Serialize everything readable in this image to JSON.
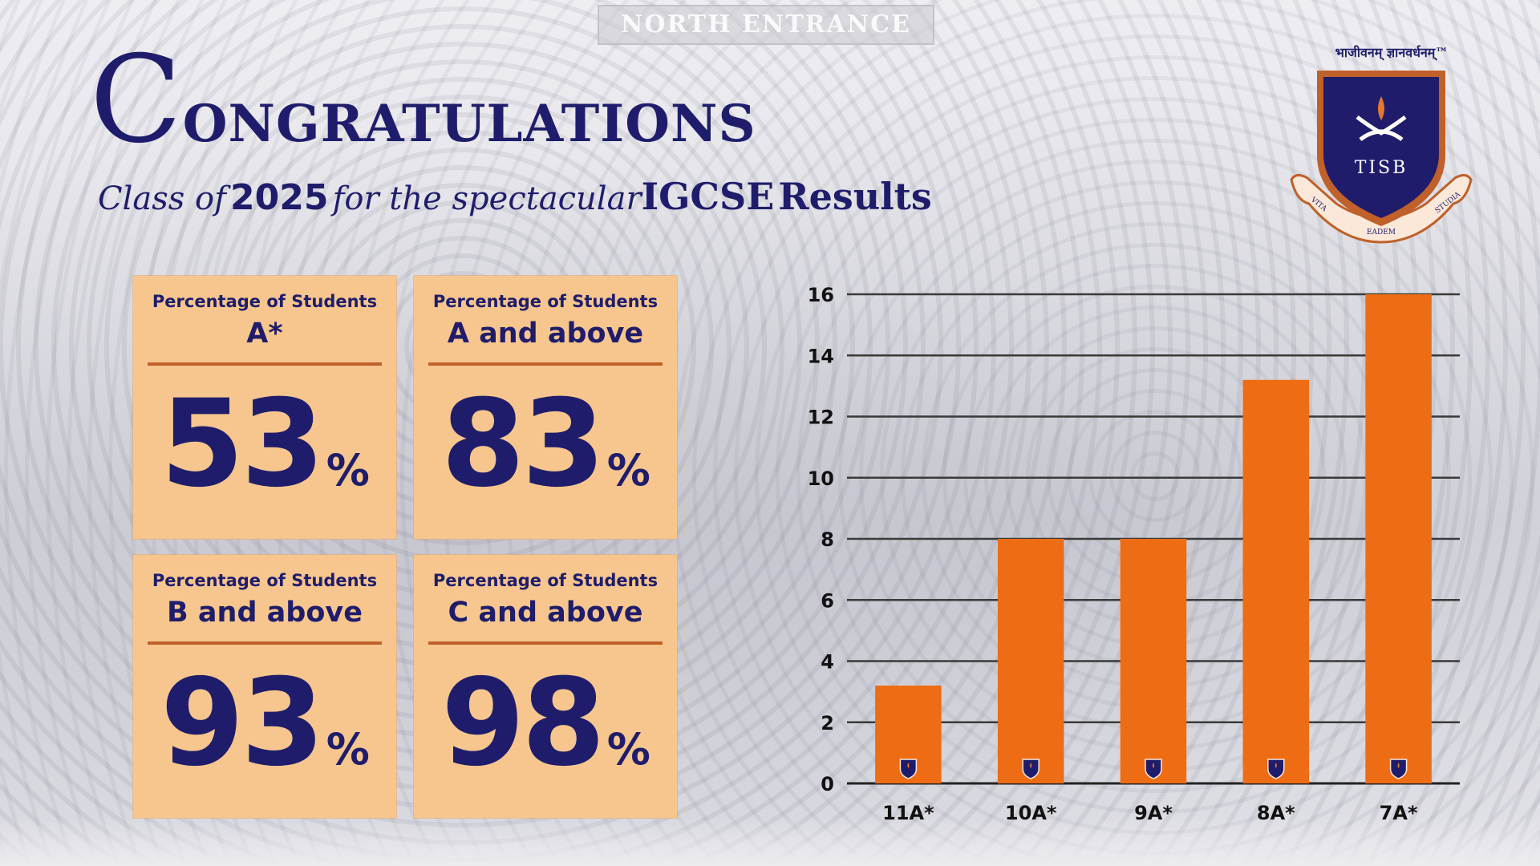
{
  "header": {
    "sign": "NORTH ENTRANCE",
    "title_first": "C",
    "title_rest": "ongratulations",
    "subtitle_class_of": "Class of",
    "subtitle_year": "2025",
    "subtitle_for": "for the spectacular",
    "subtitle_igcse": "IGCSE",
    "subtitle_results": "Results"
  },
  "logo": {
    "motto": "भाजीवनम् ज्ञानवर्धनम्™",
    "initials": "TISB",
    "ribbon_left": "VITA",
    "ribbon_center": "EADEM",
    "ribbon_right": "STUDIA",
    "colors": {
      "navy": "#1f1d6b",
      "copper": "#c0602a",
      "flame": "#e9772a"
    }
  },
  "stats": [
    {
      "label_top": "Percentage of Students",
      "label_main": "A*",
      "value": "53",
      "unit": "%"
    },
    {
      "label_top": "Percentage of Students",
      "label_main": "A and above",
      "value": "83",
      "unit": "%"
    },
    {
      "label_top": "Percentage of Students",
      "label_main": "B and above",
      "value": "93",
      "unit": "%"
    },
    {
      "label_top": "Percentage of Students",
      "label_main": "C and above",
      "value": "98",
      "unit": "%"
    }
  ],
  "colors": {
    "card": "#f6c68e",
    "navy": "#1f1d6b",
    "bar": "#ee6c14",
    "rule": "#c0602a"
  },
  "chart_data": {
    "type": "bar",
    "categories": [
      "11A*",
      "10A*",
      "9A*",
      "8A*",
      "7A*"
    ],
    "values": [
      3.2,
      8,
      8,
      13.2,
      16
    ],
    "title": "",
    "xlabel": "",
    "ylabel": "",
    "ylim": [
      0,
      16
    ],
    "yticks": [
      0,
      2,
      4,
      6,
      8,
      10,
      12,
      14,
      16
    ],
    "grid": true,
    "legend": "none",
    "bar_color": "#ee6c14",
    "bar_badge_icon": "school-crest-icon"
  }
}
